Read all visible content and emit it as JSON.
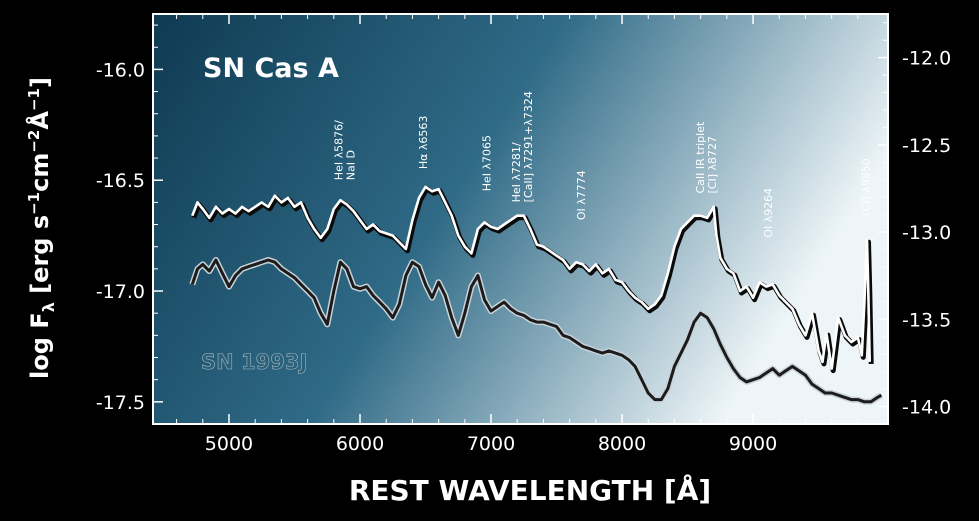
{
  "chart_data": {
    "type": "line",
    "title": "SN Cas A",
    "xlabel": "REST WAVELENGTH [Å]",
    "ylabel_left": "log F",
    "ylabel_left_sub": "λ",
    "ylabel_left_units": "[erg s",
    "ylabel_left_units_tail": "cm",
    "ylabel_left_units_end": "Å",
    "xlim": [
      4420,
      10030
    ],
    "ylim_left": [
      -17.6,
      -15.75
    ],
    "ylim_right": [
      -14.1,
      -11.75
    ],
    "x_ticks": [
      5000,
      6000,
      7000,
      8000,
      9000
    ],
    "y_ticks_left": [
      -16.0,
      -16.5,
      -17.0,
      -17.5
    ],
    "y_ticks_left_labels": [
      "-16.0",
      "-16.5",
      "-17.0",
      "-17.5"
    ],
    "y_ticks_right": [
      -12.0,
      -12.5,
      -13.0,
      -13.5,
      -14.0
    ],
    "y_ticks_right_labels": [
      "-12.0",
      "-12.5",
      "-13.0",
      "-13.5",
      "-14.0"
    ],
    "grid": false,
    "background_colors": {
      "dark": "#0f3a52",
      "mid": "#2f6a86",
      "light": "#eef5f8"
    },
    "series": [
      {
        "name": "SN Cas A",
        "axis": "left",
        "color": "#ffffff",
        "x": [
          4720,
          4760,
          4800,
          4850,
          4900,
          4950,
          5000,
          5050,
          5100,
          5150,
          5200,
          5250,
          5300,
          5350,
          5400,
          5450,
          5500,
          5550,
          5600,
          5650,
          5700,
          5750,
          5800,
          5850,
          5900,
          5950,
          6000,
          6050,
          6100,
          6150,
          6200,
          6250,
          6300,
          6350,
          6400,
          6450,
          6500,
          6550,
          6600,
          6650,
          6700,
          6750,
          6800,
          6850,
          6900,
          6950,
          7000,
          7050,
          7100,
          7150,
          7200,
          7250,
          7300,
          7350,
          7400,
          7450,
          7500,
          7550,
          7600,
          7650,
          7700,
          7750,
          7800,
          7850,
          7900,
          7950,
          8000,
          8050,
          8100,
          8150,
          8200,
          8250,
          8300,
          8350,
          8400,
          8450,
          8500,
          8550,
          8600,
          8650,
          8700,
          8720,
          8750,
          8800,
          8850,
          8900,
          8950,
          9000,
          9050,
          9100,
          9150,
          9200,
          9250,
          9300,
          9350,
          9400,
          9450,
          9500,
          9530,
          9560,
          9600,
          9650,
          9700,
          9750,
          9800,
          9830,
          9850,
          9870,
          9880,
          9890
        ],
        "y": [
          -16.66,
          -16.6,
          -16.63,
          -16.67,
          -16.62,
          -16.65,
          -16.63,
          -16.65,
          -16.62,
          -16.64,
          -16.62,
          -16.6,
          -16.62,
          -16.57,
          -16.6,
          -16.58,
          -16.62,
          -16.6,
          -16.67,
          -16.72,
          -16.76,
          -16.72,
          -16.63,
          -16.59,
          -16.61,
          -16.64,
          -16.68,
          -16.72,
          -16.7,
          -16.73,
          -16.74,
          -16.75,
          -16.78,
          -16.81,
          -16.68,
          -16.58,
          -16.53,
          -16.55,
          -16.54,
          -16.6,
          -16.66,
          -16.75,
          -16.8,
          -16.83,
          -16.72,
          -16.69,
          -16.71,
          -16.72,
          -16.7,
          -16.68,
          -16.66,
          -16.66,
          -16.72,
          -16.79,
          -16.8,
          -16.82,
          -16.84,
          -16.86,
          -16.9,
          -16.87,
          -16.88,
          -16.91,
          -16.88,
          -16.92,
          -16.9,
          -16.95,
          -16.96,
          -17.0,
          -17.03,
          -17.05,
          -17.08,
          -17.06,
          -17.02,
          -16.92,
          -16.8,
          -16.72,
          -16.69,
          -16.66,
          -16.66,
          -16.67,
          -16.62,
          -16.75,
          -16.85,
          -16.9,
          -16.92,
          -17.0,
          -16.98,
          -17.03,
          -16.96,
          -16.98,
          -16.97,
          -17.02,
          -17.05,
          -17.08,
          -17.15,
          -17.2,
          -17.1,
          -17.27,
          -17.32,
          -17.19,
          -17.35,
          -17.12,
          -17.2,
          -17.23,
          -17.21,
          -17.29,
          -17.05,
          -16.77,
          -17.0,
          -17.32
        ]
      },
      {
        "name": "SN 1993J",
        "axis": "left",
        "color": "#1c1c1c",
        "x": [
          4720,
          4760,
          4800,
          4850,
          4900,
          4950,
          5000,
          5050,
          5100,
          5150,
          5200,
          5250,
          5300,
          5350,
          5400,
          5450,
          5500,
          5550,
          5600,
          5650,
          5700,
          5750,
          5800,
          5850,
          5900,
          5950,
          6000,
          6050,
          6100,
          6150,
          6200,
          6250,
          6300,
          6350,
          6400,
          6450,
          6500,
          6550,
          6600,
          6650,
          6700,
          6750,
          6800,
          6850,
          6900,
          6950,
          7000,
          7050,
          7100,
          7150,
          7200,
          7250,
          7300,
          7350,
          7400,
          7450,
          7500,
          7550,
          7600,
          7650,
          7700,
          7750,
          7800,
          7850,
          7900,
          7950,
          8000,
          8050,
          8100,
          8150,
          8200,
          8250,
          8300,
          8350,
          8400,
          8450,
          8500,
          8550,
          8600,
          8650,
          8700,
          8750,
          8800,
          8850,
          8900,
          8950,
          9000,
          9050,
          9100,
          9150,
          9200,
          9250,
          9300,
          9350,
          9400,
          9450,
          9500,
          9550,
          9600,
          9650,
          9700,
          9750,
          9800,
          9850,
          9900,
          9950,
          9980
        ],
        "y": [
          -16.97,
          -16.9,
          -16.88,
          -16.91,
          -16.86,
          -16.92,
          -16.98,
          -16.93,
          -16.9,
          -16.89,
          -16.88,
          -16.87,
          -16.86,
          -16.87,
          -16.9,
          -16.92,
          -16.94,
          -16.97,
          -17.0,
          -17.03,
          -17.1,
          -17.15,
          -17.0,
          -16.87,
          -16.9,
          -16.98,
          -16.99,
          -16.98,
          -17.02,
          -17.05,
          -17.08,
          -17.12,
          -17.06,
          -16.93,
          -16.87,
          -16.89,
          -16.97,
          -17.03,
          -16.96,
          -17.02,
          -17.12,
          -17.2,
          -17.1,
          -16.98,
          -16.93,
          -17.04,
          -17.09,
          -17.07,
          -17.05,
          -17.08,
          -17.1,
          -17.11,
          -17.13,
          -17.14,
          -17.14,
          -17.15,
          -17.16,
          -17.2,
          -17.21,
          -17.23,
          -17.25,
          -17.26,
          -17.27,
          -17.28,
          -17.27,
          -17.28,
          -17.29,
          -17.31,
          -17.34,
          -17.4,
          -17.46,
          -17.49,
          -17.49,
          -17.44,
          -17.34,
          -17.28,
          -17.22,
          -17.14,
          -17.1,
          -17.12,
          -17.17,
          -17.24,
          -17.3,
          -17.35,
          -17.39,
          -17.41,
          -17.4,
          -17.39,
          -17.37,
          -17.35,
          -17.38,
          -17.36,
          -17.34,
          -17.36,
          -17.38,
          -17.42,
          -17.44,
          -17.46,
          -17.46,
          -17.47,
          -17.48,
          -17.49,
          -17.49,
          -17.5,
          -17.5,
          -17.48,
          -17.47
        ]
      }
    ],
    "series_labels": {
      "cas_a": "SN Cas A",
      "sn1993j": "SN 1993J"
    },
    "annotations": [
      {
        "text": "HeI λ5876/",
        "text2": "NaI D",
        "x": 5890,
        "y": -16.5
      },
      {
        "text": "Hα λ6563",
        "text2": "",
        "x": 6480,
        "y": -16.45
      },
      {
        "text": "HeI λ7065",
        "text2": "",
        "x": 6965,
        "y": -16.55
      },
      {
        "text": "HeI λ7281/",
        "text2": "[CaII] λ7291+λ7324",
        "x": 7245,
        "y": -16.6
      },
      {
        "text": "OI λ7774",
        "text2": "",
        "x": 7685,
        "y": -16.68
      },
      {
        "text": "CaII IR triplet",
        "text2": "[CI] λ8727",
        "x": 8650,
        "y": -16.56
      },
      {
        "text": "OI λ9264",
        "text2": "",
        "x": 9115,
        "y": -16.76
      },
      {
        "text": "[CI] λ9850",
        "text2": "",
        "x": 9860,
        "y": -16.66
      }
    ]
  }
}
